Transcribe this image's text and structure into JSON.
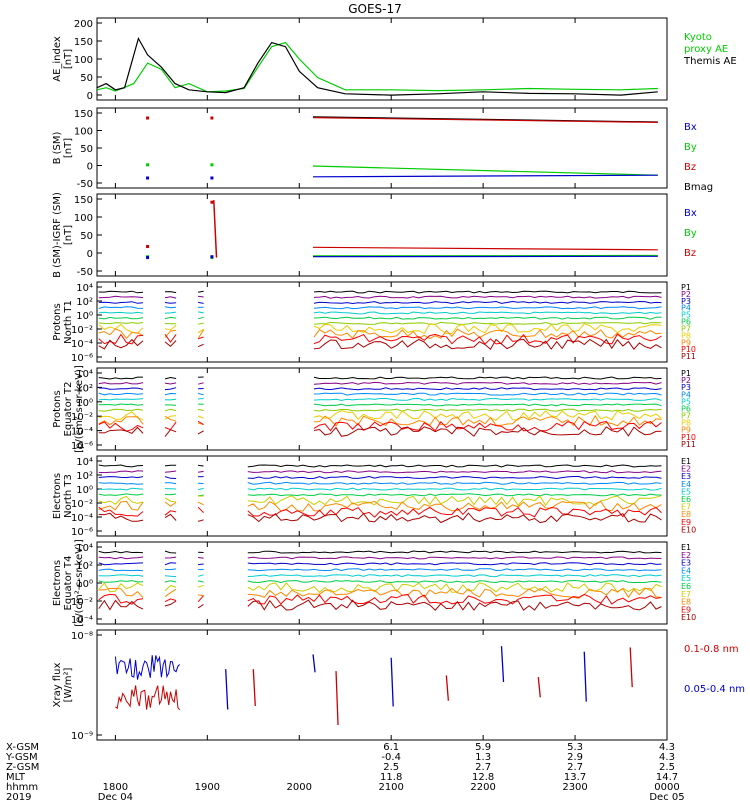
{
  "chart_data": {
    "title": "GOES-17",
    "type": "line",
    "time_axis": {
      "rows": [
        {
          "label": "X-GSM",
          "values": [
            "",
            "",
            "",
            "6.1",
            "5.9",
            "5.3",
            "4.3"
          ]
        },
        {
          "label": "Y-GSM",
          "values": [
            "",
            "",
            "",
            "-0.4",
            "1.3",
            "2.9",
            "4.3"
          ]
        },
        {
          "label": "Z-GSM",
          "values": [
            "",
            "",
            "",
            "2.5",
            "2.7",
            "2.7",
            "2.5"
          ]
        },
        {
          "label": "MLT",
          "values": [
            "",
            "",
            "",
            "11.8",
            "12.8",
            "13.7",
            "14.7"
          ]
        },
        {
          "label": "hhmm",
          "values": [
            "1800",
            "1900",
            "2000",
            "2100",
            "2200",
            "2300",
            "0000"
          ]
        },
        {
          "label": "2019",
          "values": [
            "Dec 04",
            "",
            "",
            "",
            "",
            "",
            "Dec 05"
          ]
        }
      ]
    },
    "panels": [
      {
        "id": "ae",
        "ylabel": [
          "AE_index",
          "[nT]"
        ],
        "yticks": [
          "200",
          "150",
          "100",
          "50",
          "0"
        ],
        "legend": [
          {
            "text": "Kyoto",
            "color": "#00cc00"
          },
          {
            "text": "proxy AE",
            "color": "#00cc00"
          },
          {
            "text": "Themis AE",
            "color": "#000000"
          }
        ],
        "series": [
          {
            "name": "Kyoto proxy AE",
            "color": "#00cc00",
            "x": [
              17.8,
              17.9,
              18.0,
              18.2,
              18.35,
              18.5,
              18.65,
              18.8,
              19.0,
              19.2,
              19.4,
              19.55,
              19.7,
              19.85,
              20.0,
              20.2,
              20.5,
              21.0,
              21.5,
              22.0,
              22.5,
              23.0,
              23.5,
              23.9
            ],
            "y": [
              25,
              30,
              22,
              40,
              90,
              75,
              30,
              40,
              20,
              22,
              28,
              80,
              130,
              140,
              100,
              55,
              25,
              25,
              23,
              25,
              28,
              26,
              25,
              28
            ]
          },
          {
            "name": "Themis AE",
            "color": "#000000",
            "x": [
              17.8,
              17.9,
              18.0,
              18.1,
              18.25,
              18.35,
              18.5,
              18.65,
              18.8,
              19.0,
              19.2,
              19.4,
              19.55,
              19.7,
              19.85,
              20.0,
              20.2,
              20.5,
              21.0,
              21.5,
              22.0,
              22.5,
              23.0,
              23.5,
              23.9
            ],
            "y": [
              30,
              40,
              25,
              30,
              150,
              110,
              80,
              40,
              25,
              20,
              18,
              30,
              90,
              140,
              130,
              70,
              30,
              15,
              12,
              15,
              20,
              16,
              15,
              12,
              20
            ]
          }
        ]
      },
      {
        "id": "bsm",
        "ylabel": [
          "B (SM)",
          "[nT]"
        ],
        "yticks": [
          "150",
          "100",
          "50",
          "0",
          "-50"
        ],
        "legend": [
          {
            "text": "Bx",
            "color": "#0000cc"
          },
          {
            "text": "By",
            "color": "#00cc00"
          },
          {
            "text": "Bz",
            "color": "#cc0000"
          },
          {
            "text": "Bmag",
            "color": "#000000"
          }
        ],
        "series": [
          {
            "name": "Bmag",
            "color": "#000000",
            "x": [
              20.15,
              23.9
            ],
            "y": [
              128,
              115
            ]
          },
          {
            "name": "Bz",
            "color": "#cc0000",
            "x": [
              20.15,
              23.9
            ],
            "y": [
              126,
              114
            ]
          },
          {
            "name": "By",
            "color": "#00cc00",
            "x": [
              20.15,
              23.9
            ],
            "y": [
              5,
              -18
            ]
          },
          {
            "name": "Bx",
            "color": "#0000cc",
            "x": [
              20.15,
              23.9
            ],
            "y": [
              -22,
              -18
            ]
          }
        ]
      },
      {
        "id": "bigrf",
        "ylabel": [
          "B (SM)-IGRF (SM)",
          "[nT]"
        ],
        "yticks": [
          "150",
          "100",
          "50",
          "0",
          "-50"
        ],
        "legend": [
          {
            "text": "Bx",
            "color": "#0000cc"
          },
          {
            "text": "By",
            "color": "#00cc00"
          },
          {
            "text": "Bz",
            "color": "#cc0000"
          }
        ],
        "series": [
          {
            "name": "Bz",
            "color": "#cc0000",
            "x": [
              20.15,
              23.9
            ],
            "y": [
              20,
              14
            ]
          },
          {
            "name": "By",
            "color": "#00cc00",
            "x": [
              20.15,
              23.9
            ],
            "y": [
              -1,
              0
            ]
          },
          {
            "name": "Bx",
            "color": "#0000cc",
            "x": [
              20.15,
              23.9
            ],
            "y": [
              -3,
              -2
            ]
          }
        ]
      },
      {
        "id": "pt1",
        "ylabel": [
          "Protons",
          "North T1"
        ],
        "yticks": [
          "10⁴",
          "10²",
          "10⁰",
          "10⁻²",
          "10⁻⁴",
          "10⁻⁶"
        ],
        "legend": [
          "P1",
          "P2",
          "P3",
          "P4",
          "P5",
          "P6",
          "P7",
          "P8",
          "P9",
          "P10",
          "P11"
        ]
      },
      {
        "id": "pt2",
        "ylabel": [
          "Protons",
          "Equator T2",
          "[p/(cm²-s-sr-keV)]"
        ],
        "yticks": [
          "10⁴",
          "10²",
          "10⁰",
          "10⁻²",
          "10⁻⁴",
          "10⁻⁶"
        ],
        "legend": [
          "P1",
          "P2",
          "P3",
          "P4",
          "P5",
          "P6",
          "P7",
          "P8",
          "P9",
          "P10",
          "P11"
        ]
      },
      {
        "id": "et3",
        "ylabel": [
          "Electrons",
          "North T3"
        ],
        "yticks": [
          "10⁴",
          "10²",
          "10⁰",
          "10⁻²",
          "10⁻⁴",
          "10⁻⁶"
        ],
        "legend": [
          "E1",
          "E2",
          "E3",
          "E4",
          "E5",
          "E6",
          "E7",
          "E8",
          "E9",
          "E10"
        ]
      },
      {
        "id": "et4",
        "ylabel": [
          "Electrons",
          "Equator T4",
          "[e/(cm²-s-sr-keV)]"
        ],
        "yticks": [
          "10⁴",
          "10²",
          "10⁰",
          "10⁻²",
          "10⁻⁴"
        ],
        "legend": [
          "E1",
          "E2",
          "E3",
          "E4",
          "E5",
          "E6",
          "E7",
          "E8",
          "E9",
          "E10"
        ]
      },
      {
        "id": "xray",
        "ylabel": [
          "Xray flux",
          "[W/m²]"
        ],
        "yticks": [
          "10⁻⁸",
          "10⁻⁹"
        ],
        "legend": [
          {
            "text": "0.1-0.8 nm",
            "color": "#cc0000"
          },
          {
            "text": "0.05-0.4 nm",
            "color": "#0000cc"
          }
        ]
      }
    ],
    "channel_colors": {
      "P": [
        "#000000",
        "#880088",
        "#0000cc",
        "#0088ff",
        "#00cccc",
        "#00cc44",
        "#88cc00",
        "#eecc00",
        "#ff8800",
        "#ff0000",
        "#aa0000"
      ],
      "E": [
        "#000000",
        "#880088",
        "#0000cc",
        "#0088ff",
        "#00cccc",
        "#00cc44",
        "#cccc00",
        "#ff8800",
        "#ff0000",
        "#aa0000"
      ]
    },
    "data_gaps": [
      [
        18.33,
        18.5
      ],
      [
        18.7,
        18.85
      ],
      [
        19.0,
        20.15
      ]
    ]
  }
}
